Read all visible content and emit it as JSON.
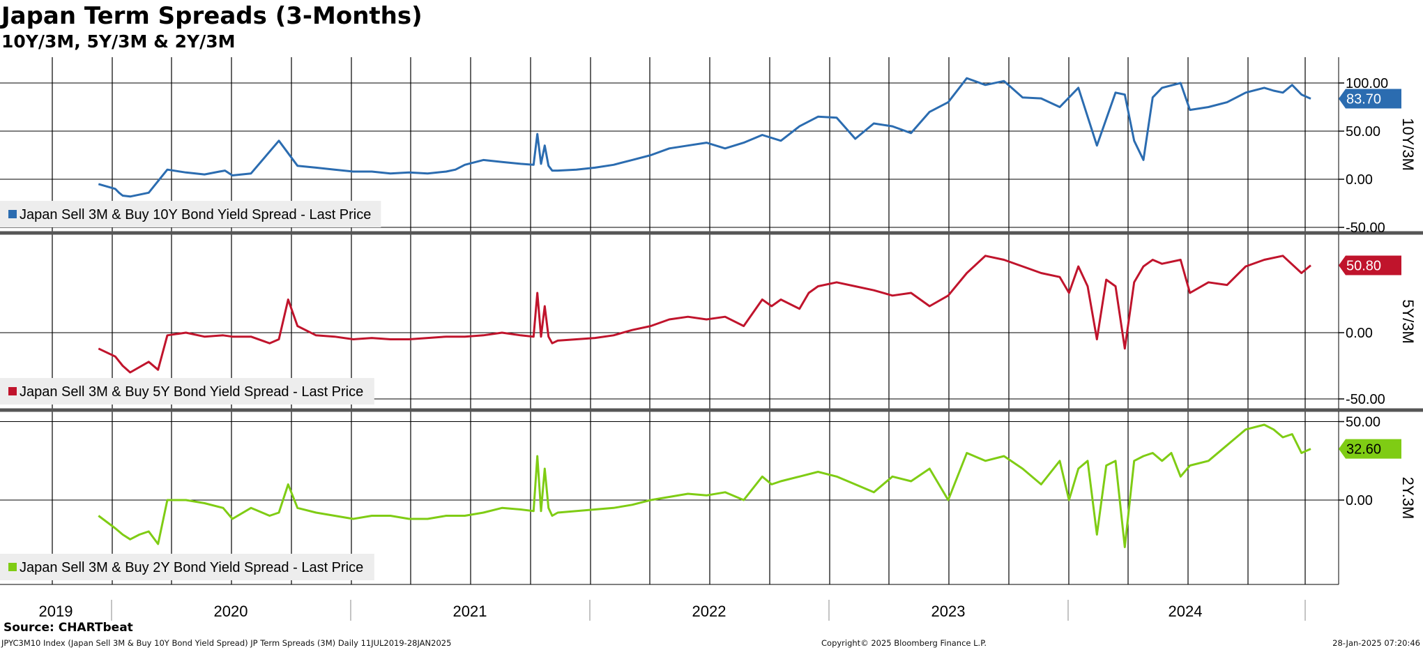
{
  "header": {
    "title": "Japan Term Spreads (3-Months)",
    "subtitle": "10Y/3M, 5Y/3M & 2Y/3M"
  },
  "chart_data": [
    {
      "type": "line",
      "panel_label": "10Y/3M",
      "legend": "Japan Sell 3M & Buy 10Y Bond Yield Spread - Last Price",
      "color": "#2b6cb0",
      "last_value": 83.7,
      "last_label": "83.70",
      "ylim": [
        -50,
        100
      ],
      "yticks": [
        100,
        50,
        0,
        -50
      ],
      "ytick_labels": [
        "100.00",
        "50.00",
        "0.00",
        "-50.00"
      ],
      "x": [
        2019.53,
        2019.62,
        2019.64,
        2019.66,
        2019.7,
        2019.8,
        2019.9,
        2020.0,
        2020.1,
        2020.18,
        2020.21,
        2020.25,
        2020.35,
        2020.5,
        2020.6,
        2020.7,
        2020.8,
        2020.9,
        2021.0,
        2021.1,
        2021.2,
        2021.3,
        2021.4,
        2021.45,
        2021.5,
        2021.6,
        2021.7,
        2021.8,
        2021.87,
        2021.89,
        2021.91,
        2021.93,
        2021.95,
        2021.97,
        2022.0,
        2022.1,
        2022.2,
        2022.3,
        2022.4,
        2022.5,
        2022.6,
        2022.7,
        2022.8,
        2022.9,
        2023.0,
        2023.1,
        2023.2,
        2023.3,
        2023.35,
        2023.4,
        2023.5,
        2023.6,
        2023.7,
        2023.8,
        2023.9,
        2024.0,
        2024.1,
        2024.2,
        2024.3,
        2024.4,
        2024.5,
        2024.6,
        2024.7,
        2024.8,
        2024.9,
        2025.0,
        2025.05,
        2025.1,
        2025.15,
        2025.2,
        2025.25,
        2025.35,
        2025.4,
        2025.5,
        2025.6,
        2025.7,
        2025.8,
        2025.85,
        2025.9,
        2025.95,
        2026.0,
        2026.05
      ],
      "values": [
        -5,
        -10,
        -14,
        -17,
        -18,
        -14,
        10,
        7,
        5,
        8,
        9,
        4,
        6,
        40,
        14,
        12,
        10,
        8,
        8,
        6,
        7,
        6,
        8,
        10,
        15,
        20,
        18,
        16,
        15,
        47,
        16,
        35,
        14,
        9,
        9,
        10,
        12,
        15,
        20,
        25,
        32,
        35,
        38,
        32,
        38,
        46,
        40,
        55,
        60,
        65,
        64,
        42,
        58,
        55,
        48,
        70,
        80,
        105,
        98,
        102,
        85,
        84,
        75,
        95,
        35,
        90,
        88,
        40,
        20,
        85,
        95,
        100,
        72,
        75,
        80,
        90,
        95,
        92,
        90,
        98,
        88,
        83.7
      ]
    },
    {
      "type": "line",
      "panel_label": "5Y/3M",
      "legend": "Japan Sell 3M & Buy 5Y Bond Yield Spread - Last Price",
      "color": "#c0142c",
      "last_value": 50.8,
      "last_label": "50.80",
      "ylim": [
        -50,
        50
      ],
      "yticks": [
        0,
        -50
      ],
      "ytick_labels": [
        "0.00",
        "-50.00"
      ],
      "x": [
        2019.53,
        2019.62,
        2019.66,
        2019.7,
        2019.8,
        2019.85,
        2019.9,
        2020.0,
        2020.1,
        2020.2,
        2020.25,
        2020.35,
        2020.45,
        2020.5,
        2020.55,
        2020.6,
        2020.7,
        2020.8,
        2020.9,
        2021.0,
        2021.1,
        2021.2,
        2021.3,
        2021.4,
        2021.5,
        2021.6,
        2021.7,
        2021.8,
        2021.87,
        2021.89,
        2021.91,
        2021.93,
        2021.95,
        2021.97,
        2022.0,
        2022.1,
        2022.2,
        2022.3,
        2022.4,
        2022.5,
        2022.6,
        2022.7,
        2022.8,
        2022.9,
        2023.0,
        2023.1,
        2023.15,
        2023.2,
        2023.3,
        2023.35,
        2023.4,
        2023.5,
        2023.6,
        2023.7,
        2023.8,
        2023.9,
        2024.0,
        2024.1,
        2024.2,
        2024.3,
        2024.4,
        2024.5,
        2024.6,
        2024.7,
        2024.75,
        2024.8,
        2024.85,
        2024.9,
        2024.95,
        2025.0,
        2025.05,
        2025.1,
        2025.15,
        2025.2,
        2025.25,
        2025.35,
        2025.4,
        2025.5,
        2025.6,
        2025.7,
        2025.8,
        2025.9,
        2026.0,
        2026.05
      ],
      "values": [
        -12,
        -18,
        -25,
        -30,
        -22,
        -28,
        -2,
        0,
        -3,
        -2,
        -3,
        -3,
        -8,
        -5,
        25,
        5,
        -2,
        -3,
        -5,
        -4,
        -5,
        -5,
        -4,
        -3,
        -3,
        -2,
        0,
        -2,
        -3,
        30,
        -3,
        20,
        -3,
        -8,
        -6,
        -5,
        -4,
        -2,
        2,
        5,
        10,
        12,
        10,
        12,
        5,
        25,
        20,
        25,
        18,
        30,
        35,
        38,
        35,
        32,
        28,
        30,
        20,
        28,
        45,
        58,
        55,
        50,
        45,
        42,
        30,
        50,
        35,
        -5,
        40,
        35,
        -12,
        38,
        50,
        55,
        52,
        55,
        30,
        38,
        36,
        50,
        55,
        58,
        45,
        50.8
      ]
    },
    {
      "type": "line",
      "panel_label": "2Y.3M",
      "legend": "Japan Sell 3M & Buy 2Y Bond Yield Spread - Last Price",
      "color": "#7fcc14",
      "last_value": 32.6,
      "last_label": "32.60",
      "ylim": [
        -50,
        50
      ],
      "yticks": [
        50,
        0
      ],
      "ytick_labels": [
        "50.00",
        "0.00"
      ],
      "x": [
        2019.53,
        2019.62,
        2019.66,
        2019.7,
        2019.75,
        2019.8,
        2019.85,
        2019.9,
        2020.0,
        2020.1,
        2020.2,
        2020.25,
        2020.35,
        2020.45,
        2020.5,
        2020.55,
        2020.6,
        2020.7,
        2020.8,
        2020.9,
        2021.0,
        2021.1,
        2021.2,
        2021.3,
        2021.4,
        2021.5,
        2021.6,
        2021.7,
        2021.8,
        2021.87,
        2021.89,
        2021.91,
        2021.93,
        2021.95,
        2021.97,
        2022.0,
        2022.1,
        2022.2,
        2022.3,
        2022.4,
        2022.5,
        2022.6,
        2022.7,
        2022.8,
        2022.9,
        2023.0,
        2023.1,
        2023.15,
        2023.2,
        2023.3,
        2023.4,
        2023.5,
        2023.6,
        2023.7,
        2023.8,
        2023.9,
        2024.0,
        2024.1,
        2024.2,
        2024.3,
        2024.4,
        2024.5,
        2024.6,
        2024.7,
        2024.75,
        2024.8,
        2024.85,
        2024.9,
        2024.95,
        2025.0,
        2025.05,
        2025.1,
        2025.15,
        2025.2,
        2025.25,
        2025.3,
        2025.35,
        2025.4,
        2025.5,
        2025.6,
        2025.7,
        2025.8,
        2025.85,
        2025.9,
        2025.95,
        2026.0,
        2026.05
      ],
      "values": [
        -10,
        -18,
        -22,
        -25,
        -22,
        -20,
        -28,
        0,
        0,
        -2,
        -5,
        -12,
        -5,
        -10,
        -8,
        10,
        -5,
        -8,
        -10,
        -12,
        -10,
        -10,
        -12,
        -12,
        -10,
        -10,
        -8,
        -5,
        -6,
        -7,
        28,
        -7,
        20,
        -5,
        -10,
        -8,
        -7,
        -6,
        -5,
        -3,
        0,
        2,
        4,
        3,
        5,
        0,
        15,
        10,
        12,
        15,
        18,
        15,
        10,
        5,
        15,
        12,
        20,
        0,
        30,
        25,
        28,
        20,
        10,
        25,
        0,
        20,
        25,
        -22,
        22,
        25,
        -30,
        25,
        28,
        30,
        25,
        30,
        15,
        22,
        25,
        35,
        45,
        48,
        45,
        40,
        42,
        30,
        32.6
      ]
    }
  ],
  "x_axis": {
    "years": [
      "2019",
      "2020",
      "2021",
      "2022",
      "2023",
      "2024"
    ],
    "year_positions": [
      2019.55,
      2020.5,
      2021.5,
      2022.5,
      2023.5,
      2024.5
    ]
  },
  "footer": {
    "source": "Source: CHARTbeat",
    "left": "JPYC3M10 Index (Japan Sell 3M & Buy 10Y Bond Yield Spread) JP Term Spreads (3M)  Daily 11JUL2019-28JAN2025",
    "center": "Copyright© 2025 Bloomberg Finance L.P.",
    "right": "28-Jan-2025 07:20:46"
  }
}
